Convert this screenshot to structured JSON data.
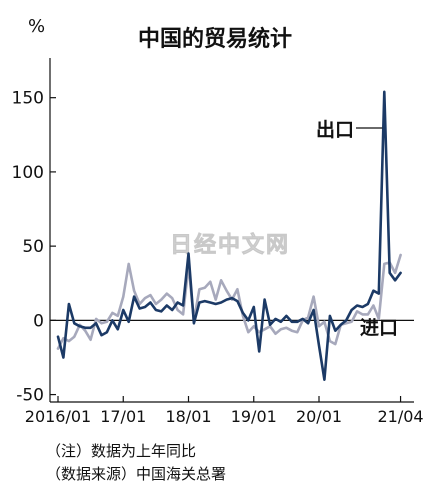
{
  "chart_data": {
    "type": "line",
    "title": "中国的贸易统计",
    "ylabel": "%",
    "xlabel": "",
    "ylim": [
      -55,
      170
    ],
    "yticks": [
      -50,
      0,
      50,
      100,
      150
    ],
    "x_tick_labels": [
      "2016/01",
      "17/01",
      "18/01",
      "19/01",
      "20/01",
      "21/04"
    ],
    "x_tick_months": [
      0,
      12,
      24,
      36,
      48,
      63
    ],
    "x_range_months": [
      0,
      64
    ],
    "grid": false,
    "legend": "inline labels",
    "series": [
      {
        "name": "出口",
        "color": "#1c3a66",
        "values": [
          -11,
          -25,
          11,
          -2,
          -4,
          -5,
          -5,
          -2,
          -10,
          -8,
          0,
          -6,
          7,
          -1,
          16,
          8,
          9,
          12,
          7,
          6,
          10,
          7,
          12,
          10,
          45,
          -2,
          12,
          13,
          12,
          11,
          12,
          14,
          15,
          13,
          5,
          0,
          9,
          -21,
          14,
          -3,
          1,
          -1,
          3,
          -1,
          -1,
          1,
          -2,
          7,
          -17,
          -40,
          3,
          -7,
          -3,
          0,
          7,
          10,
          9,
          11,
          20,
          18,
          154,
          32,
          27,
          32
        ]
      },
      {
        "name": "进口",
        "color": "#a7a9bc",
        "values": [
          -19,
          -12,
          -14,
          -11,
          -3,
          -7,
          -13,
          1,
          -2,
          -1,
          5,
          3,
          16,
          38,
          20,
          11,
          15,
          17,
          11,
          14,
          18,
          15,
          7,
          4,
          37,
          0,
          21,
          22,
          26,
          14,
          27,
          20,
          14,
          21,
          3,
          -8,
          -4,
          -8,
          -6,
          -4,
          -9,
          -6,
          -5,
          -7,
          -8,
          0,
          2,
          16,
          -4,
          -1,
          -14,
          -16,
          -3,
          -2,
          -1,
          6,
          4,
          4,
          10,
          1,
          38,
          39,
          32,
          44
        ]
      }
    ]
  },
  "watermark": "日经中文网",
  "notes": [
    "（注）数据为上年同比",
    "（数据来源）中国海关总署"
  ]
}
